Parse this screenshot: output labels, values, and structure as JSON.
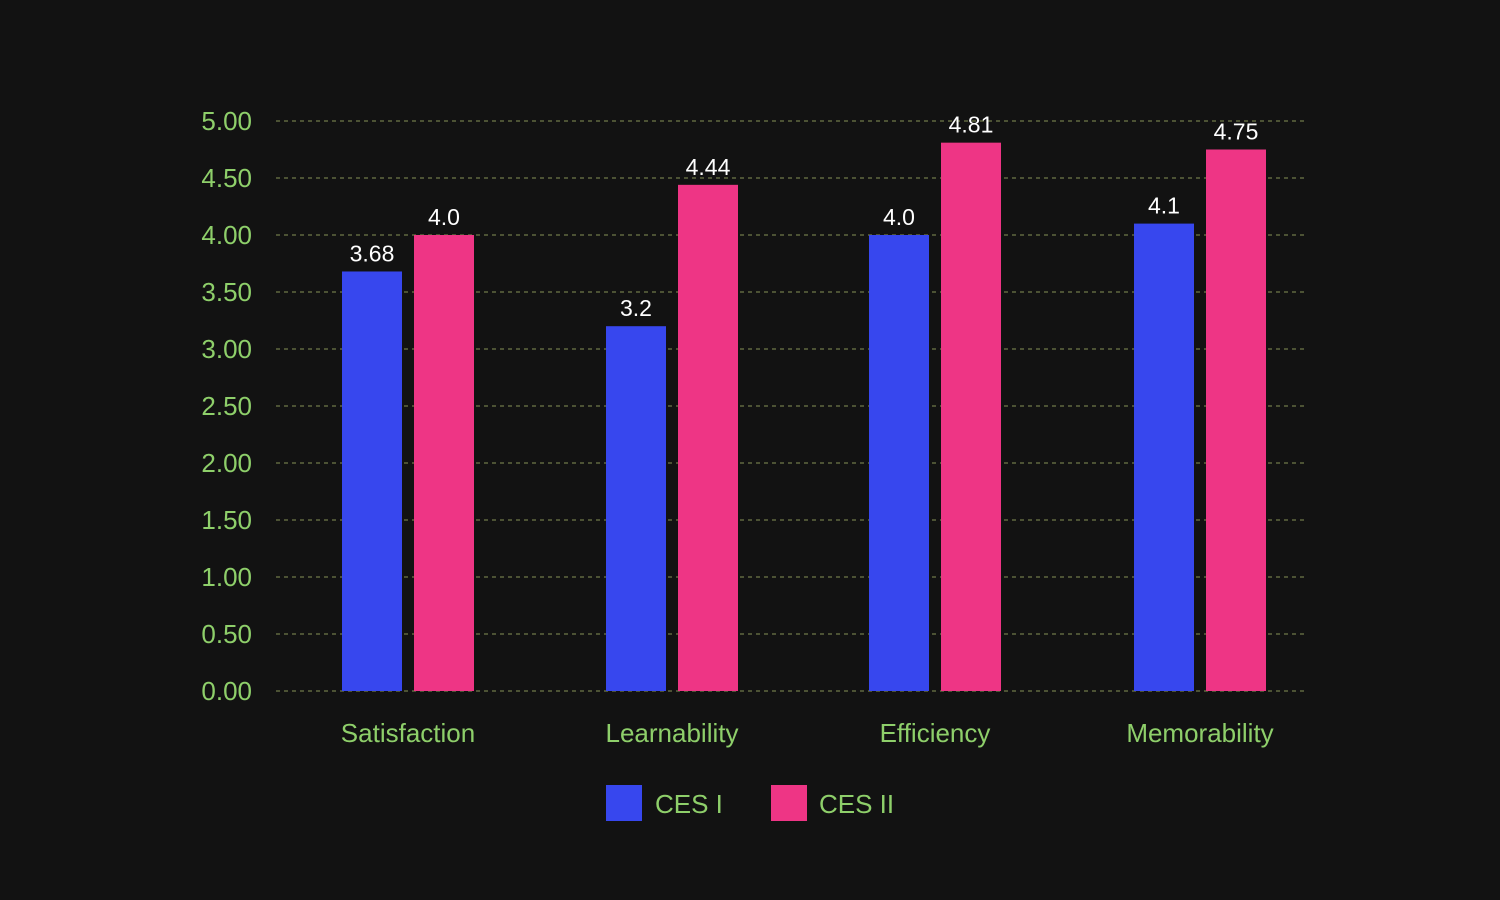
{
  "colors": {
    "background": "#121212",
    "axis_text": "#8ecf6a",
    "grid": "#6f7a4a",
    "data_label": "#ffffff"
  },
  "chart_data": {
    "type": "bar",
    "categories": [
      "Satisfaction",
      "Learnability",
      "Efficiency",
      "Memorability"
    ],
    "series": [
      {
        "name": "CES I",
        "color": "#3747ee",
        "values": [
          3.68,
          3.2,
          4.0,
          4.1
        ],
        "labels": [
          "3.68",
          "3.2",
          "4.0",
          "4.1"
        ]
      },
      {
        "name": "CES II",
        "color": "#ee3585",
        "values": [
          4.0,
          4.44,
          4.81,
          4.75
        ],
        "labels": [
          "4.0",
          "4.44",
          "4.81",
          "4.75"
        ]
      }
    ],
    "ylim": [
      0,
      5
    ],
    "yticks": [
      "0.00",
      "0.50",
      "1.00",
      "1.50",
      "2.00",
      "2.50",
      "3.00",
      "3.50",
      "4.00",
      "4.50",
      "5.00"
    ],
    "grid": true,
    "grid_style": "dashed",
    "legend_position": "bottom-center"
  }
}
